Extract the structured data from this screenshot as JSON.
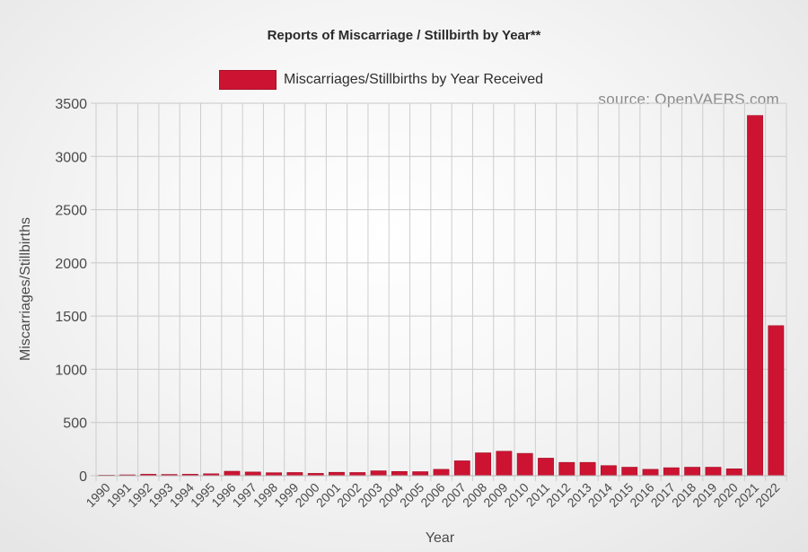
{
  "chart_data": {
    "type": "bar",
    "title": "Reports of Miscarriage / Stillbirth by Year**",
    "xlabel": "Year",
    "ylabel": "Miscarriages/Stillbirths",
    "source": "source: OpenVAERS.com",
    "ylim": [
      0,
      3500
    ],
    "yticks": [
      0,
      500,
      1000,
      1500,
      2000,
      2500,
      3000,
      3500
    ],
    "grid": true,
    "legend_position": "top-center",
    "bar_color": "#cc1432",
    "series": [
      {
        "name": "Miscarriages/Stillbirths by Year Received",
        "values": [
          5,
          8,
          14,
          12,
          14,
          18,
          42,
          35,
          28,
          30,
          22,
          32,
          30,
          46,
          40,
          38,
          60,
          140,
          215,
          230,
          210,
          165,
          125,
          125,
          95,
          80,
          60,
          75,
          80,
          80,
          65,
          3385,
          1410
        ]
      }
    ],
    "categories": [
      "1990",
      "1991",
      "1992",
      "1993",
      "1994",
      "1995",
      "1996",
      "1997",
      "1998",
      "1999",
      "2000",
      "2001",
      "2002",
      "2003",
      "2004",
      "2005",
      "2006",
      "2007",
      "2008",
      "2009",
      "2010",
      "2011",
      "2012",
      "2013",
      "2014",
      "2015",
      "2016",
      "2017",
      "2018",
      "2019",
      "2020",
      "2021",
      "2022"
    ]
  }
}
